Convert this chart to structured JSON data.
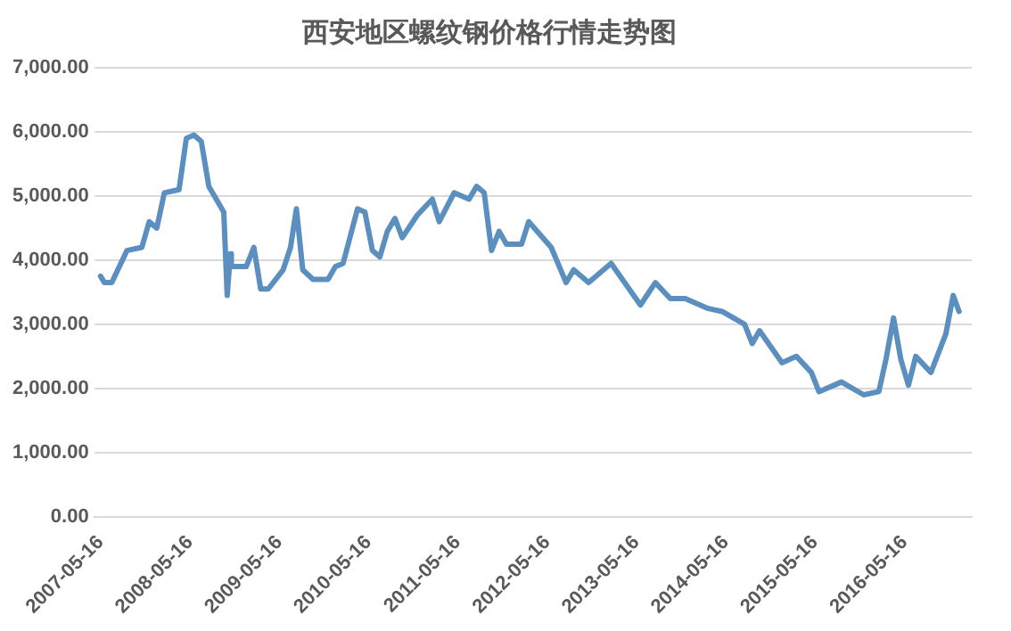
{
  "chart_data": {
    "type": "line",
    "title": "西安地区螺纹钢价格行情走势图",
    "x": [
      "2007-05-16",
      "2007-06",
      "2007-07",
      "2007-09",
      "2007-11",
      "2007-12",
      "2008-01",
      "2008-02",
      "2008-04",
      "2008-05",
      "2008-06",
      "2008-07",
      "2008-08",
      "2008-10-01",
      "2008-10-15",
      "2008-10-28",
      "2008-11",
      "2009-01",
      "2009-02",
      "2009-03",
      "2009-04",
      "2009-06",
      "2009-07",
      "2009-07-25",
      "2009-08-20",
      "2009-10",
      "2009-12",
      "2010-01",
      "2010-02",
      "2010-04",
      "2010-05",
      "2010-06",
      "2010-07",
      "2010-08",
      "2010-09",
      "2010-10",
      "2010-12",
      "2011-02",
      "2011-03",
      "2011-05",
      "2011-07",
      "2011-08",
      "2011-09",
      "2011-10",
      "2011-11",
      "2011-12",
      "2012-02",
      "2012-03",
      "2012-06",
      "2012-08",
      "2012-09",
      "2012-11",
      "2013-02",
      "2013-06",
      "2013-08",
      "2013-10",
      "2013-12",
      "2014-03",
      "2014-05",
      "2014-08",
      "2014-09",
      "2014-10",
      "2015-01",
      "2015-03",
      "2015-05",
      "2015-06",
      "2015-09",
      "2015-12",
      "2016-02",
      "2016-03",
      "2016-04",
      "2016-05",
      "2016-06",
      "2016-07",
      "2016-09",
      "2016-11",
      "2016-12",
      "2016-12-25"
    ],
    "series": [
      {
        "color": "#5b8fbf",
        "values": [
          3750,
          3650,
          3650,
          4150,
          4200,
          4600,
          4500,
          5050,
          5100,
          5900,
          5950,
          5850,
          5150,
          4750,
          3450,
          4100,
          3900,
          3900,
          4200,
          3550,
          3550,
          3850,
          4200,
          4800,
          3850,
          3700,
          3700,
          3900,
          3950,
          4800,
          4750,
          4150,
          4050,
          4450,
          4650,
          4350,
          4700,
          4950,
          4600,
          5050,
          4950,
          5150,
          5050,
          4150,
          4450,
          4250,
          4250,
          4600,
          4200,
          3650,
          3850,
          3650,
          3950,
          3300,
          3650,
          3400,
          3400,
          3250,
          3200,
          3000,
          2700,
          2900,
          2400,
          2500,
          2250,
          1950,
          2100,
          1900,
          1950,
          2450,
          3100,
          2450,
          2050,
          2500,
          2250,
          2850,
          3450,
          3200
        ]
      }
    ],
    "xlim": [
      "2007-04-20",
      "2017-02-15"
    ],
    "xticks": [
      {
        "value": "2007-05-16",
        "label": "2007-05-16"
      },
      {
        "value": "2008-05-16",
        "label": "2008-05-16"
      },
      {
        "value": "2009-05-16",
        "label": "2009-05-16"
      },
      {
        "value": "2010-05-16",
        "label": "2010-05-16"
      },
      {
        "value": "2011-05-16",
        "label": "2011-05-16"
      },
      {
        "value": "2012-05-16",
        "label": "2012-05-16"
      },
      {
        "value": "2013-05-16",
        "label": "2013-05-16"
      },
      {
        "value": "2014-05-16",
        "label": "2014-05-16"
      },
      {
        "value": "2015-05-16",
        "label": "2015-05-16"
      },
      {
        "value": "2016-05-16",
        "label": "2016-05-16"
      }
    ],
    "ylim": [
      0,
      7000
    ],
    "yticks": [
      {
        "value": 0,
        "label": "0.00"
      },
      {
        "value": 1000,
        "label": "1,000.00"
      },
      {
        "value": 2000,
        "label": "2,000.00"
      },
      {
        "value": 3000,
        "label": "3,000.00"
      },
      {
        "value": 4000,
        "label": "4,000.00"
      },
      {
        "value": 5000,
        "label": "5,000.00"
      },
      {
        "value": 6000,
        "label": "6,000.00"
      },
      {
        "value": 7000,
        "label": "7,000.00"
      }
    ],
    "grid": "y",
    "legend": false,
    "marker": "none",
    "line_style": "solid"
  }
}
